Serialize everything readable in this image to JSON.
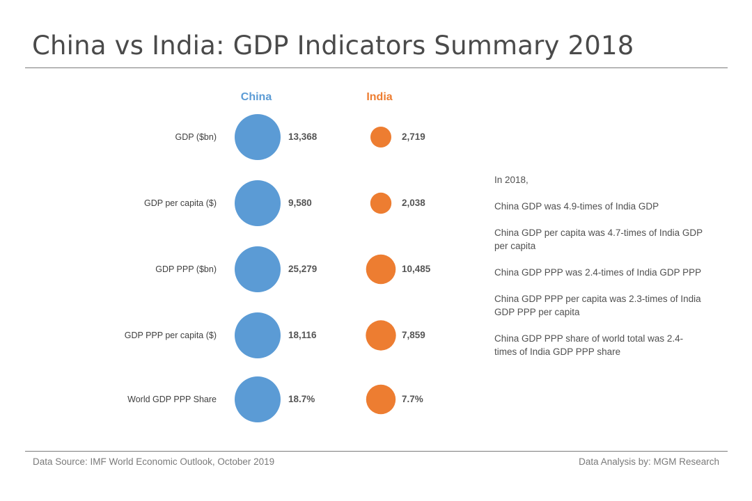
{
  "title": "China vs India: GDP Indicators Summary 2018",
  "chart_data": {
    "type": "bubble-table",
    "series": [
      {
        "name": "China",
        "color": "#5b9bd5"
      },
      {
        "name": "India",
        "color": "#ed7d31"
      }
    ],
    "rows": [
      {
        "label": "GDP ($bn)",
        "values": [
          13368,
          2719
        ],
        "value_labels": [
          "13,368",
          "2,719"
        ]
      },
      {
        "label": "GDP per capita ($)",
        "values": [
          9580,
          2038
        ],
        "value_labels": [
          "9,580",
          "2,038"
        ]
      },
      {
        "label": "GDP PPP ($bn)",
        "values": [
          25279,
          10485
        ],
        "value_labels": [
          "25,279",
          "10,485"
        ]
      },
      {
        "label": "GDP PPP per capita ($)",
        "values": [
          18116,
          7859
        ],
        "value_labels": [
          "18,116",
          "7,859"
        ]
      },
      {
        "label": "World GDP PPP Share",
        "values": [
          18.7,
          7.7
        ],
        "value_labels": [
          "18.7%",
          "7.7%"
        ]
      }
    ]
  },
  "notes": [
    "In 2018,",
    "China GDP was 4.9-times of India GDP",
    "China GDP per capita was 4.7-times of India GDP per capita",
    "China GDP PPP was 2.4-times of India GDP PPP",
    "China GDP PPP per capita was 2.3-times of India GDP PPP per capita",
    "China GDP PPP share of world total was 2.4-times of India GDP PPP share"
  ],
  "footer": {
    "source": "Data Source:  IMF  World  Economic  Outlook,  October  2019",
    "credit": "Data Analysis by:  MGM  Research"
  },
  "colors": {
    "china": "#5b9bd5",
    "india": "#ed7d31",
    "text": "#4a4a4a"
  }
}
